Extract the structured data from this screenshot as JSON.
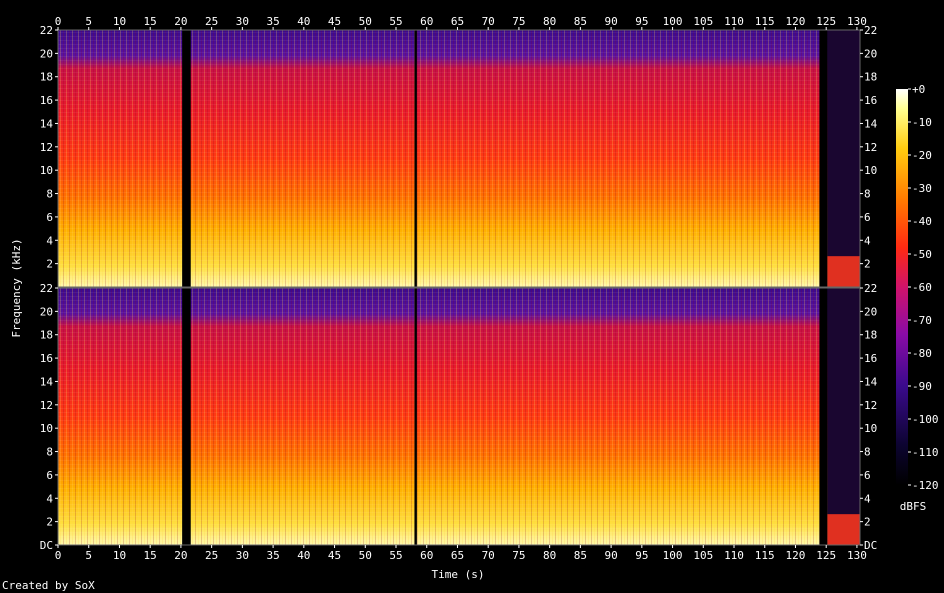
{
  "chart_data": {
    "type": "heatmap",
    "title": "",
    "xlabel": "Time (s)",
    "ylabel": "Frequency (kHz)",
    "xlim": [
      0,
      130.5
    ],
    "ylim": [
      0,
      22
    ],
    "x_ticks": [
      0,
      5,
      10,
      15,
      20,
      25,
      30,
      35,
      40,
      45,
      50,
      55,
      60,
      65,
      70,
      75,
      80,
      85,
      90,
      95,
      100,
      105,
      110,
      115,
      120,
      125,
      130
    ],
    "y_ticks": [
      "DC",
      "2",
      "4",
      "6",
      "8",
      "10",
      "12",
      "14",
      "16",
      "18",
      "20",
      "22"
    ],
    "channels": 2,
    "colorbar": {
      "label": "dBFS",
      "ticks": [
        "+0",
        "-10",
        "-20",
        "-30",
        "-40",
        "-50",
        "-60",
        "-70",
        "-80",
        "-90",
        "-100",
        "-110",
        "-120"
      ],
      "range": [
        -120,
        0
      ]
    },
    "credit": "Created by SoX"
  }
}
